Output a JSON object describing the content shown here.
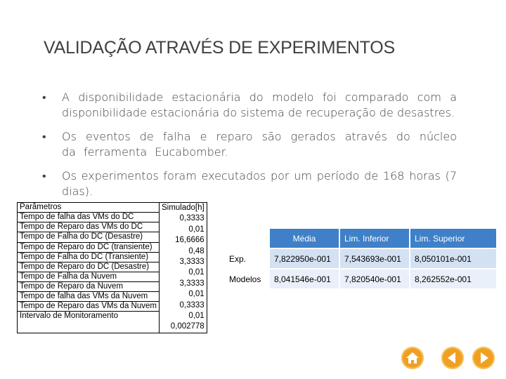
{
  "slide": {
    "title": "VALIDAÇÃO ATRAVÉS DE EXPERIMENTOS",
    "bullets": [
      "A disponibilidade estacionária do modelo foi comparado com a disponibilidade estacionária do sistema de recuperação de desastres.",
      " Os eventos de falha e reparo são gerados através do núcleo da ferramenta Eucabomber.",
      "Os experimentos foram executados por um período de 168 horas (7 dias)."
    ]
  },
  "params_table": {
    "header_param": "Parâmetros",
    "header_value": "Simulado[h]",
    "rows": [
      "Tempo de falha das VMs do  DC",
      "Tempo de Reparo das VMs do DC",
      "Tempo de Falha do DC (Desastre)",
      "Tempo de Reparo do DC (transiente)",
      "Tempo de Falha do DC (Transiente)",
      "Tempo de Reparo do DC (Desastre)",
      "Tempo de Falha da Nuvem",
      "Tempo de Reparo da Nuvem",
      "Tempo de falha das VMs da  Nuvem",
      "Tempo de Reparo das VMs da Nuvem",
      "Intervalo de Monitoramento"
    ],
    "values": [
      "0,3333",
      "0,01",
      "16,6666",
      "0,48",
      "3,3333",
      "0,01",
      "3,3333",
      "0,01",
      "0,3333",
      "0,01",
      "0,002778"
    ]
  },
  "stats_table": {
    "headers": [
      "Média",
      "Lim. Inferior",
      "Lim. Superior"
    ],
    "rows": [
      {
        "label": "Exp.",
        "media": "7,822950e-001",
        "inf": "7,543693e-001",
        "sup": "8,050101e-001"
      },
      {
        "label": "Modelos",
        "media": "8,041546e-001",
        "inf": "7,820540e-001",
        "sup": "8,262552e-001"
      }
    ]
  },
  "nav": {
    "icons": [
      "home-icon",
      "previous-arrow-icon",
      "next-arrow-icon"
    ],
    "color": "#f0a020"
  }
}
